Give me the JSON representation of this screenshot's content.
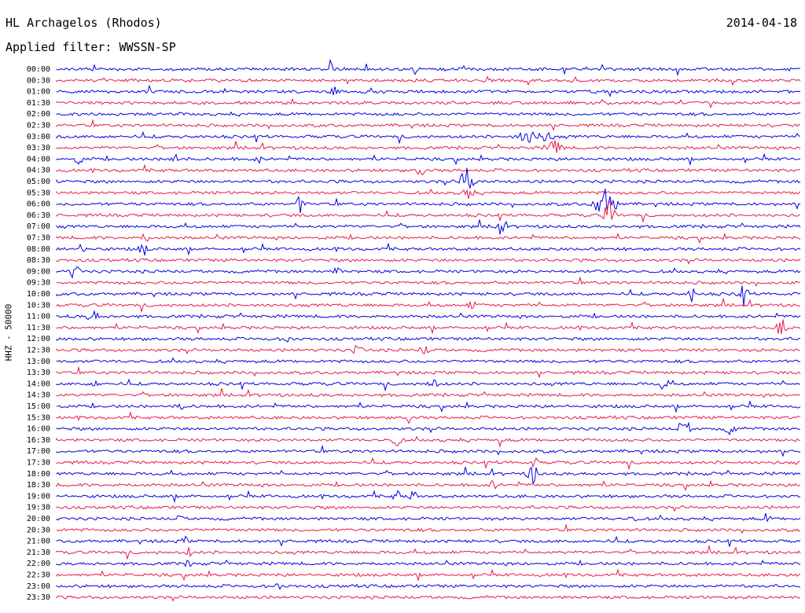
{
  "header": {
    "station": "HL Archagelos (Rhodos)",
    "filter": "Applied filter: WWSSN-SP",
    "date": "2014-04-18"
  },
  "axis": {
    "channel_label": "HHZ - 50000"
  },
  "colors": {
    "trace_a": "#0000e6",
    "trace_b": "#e6194b",
    "background": "#ffffff",
    "text": "#000000"
  },
  "chart_data": {
    "type": "line",
    "title": "",
    "xlabel": "",
    "ylabel": "HHZ - 50000",
    "grid": false,
    "series": [
      {
        "label": "00:00"
      },
      {
        "label": "00:30"
      },
      {
        "label": "01:00"
      },
      {
        "label": "01:30"
      },
      {
        "label": "02:00"
      },
      {
        "label": "02:30"
      },
      {
        "label": "03:00"
      },
      {
        "label": "03:30"
      },
      {
        "label": "04:00"
      },
      {
        "label": "04:30"
      },
      {
        "label": "05:00"
      },
      {
        "label": "05:30"
      },
      {
        "label": "06:00"
      },
      {
        "label": "06:30"
      },
      {
        "label": "07:00"
      },
      {
        "label": "07:30"
      },
      {
        "label": "08:00"
      },
      {
        "label": "08:30"
      },
      {
        "label": "09:00"
      },
      {
        "label": "09:30"
      },
      {
        "label": "10:00"
      },
      {
        "label": "10:30"
      },
      {
        "label": "11:00"
      },
      {
        "label": "11:30"
      },
      {
        "label": "12:00"
      },
      {
        "label": "12:30"
      },
      {
        "label": "13:00"
      },
      {
        "label": "13:30"
      },
      {
        "label": "14:00"
      },
      {
        "label": "14:30"
      },
      {
        "label": "15:00"
      },
      {
        "label": "15:30"
      },
      {
        "label": "16:00"
      },
      {
        "label": "16:30"
      },
      {
        "label": "17:00"
      },
      {
        "label": "17:30"
      },
      {
        "label": "18:00"
      },
      {
        "label": "18:30"
      },
      {
        "label": "19:00"
      },
      {
        "label": "19:30"
      },
      {
        "label": "20:00"
      },
      {
        "label": "20:30"
      },
      {
        "label": "21:00"
      },
      {
        "label": "21:30"
      },
      {
        "label": "22:00"
      },
      {
        "label": "22:30"
      },
      {
        "label": "23:00"
      },
      {
        "label": "23:30"
      }
    ]
  }
}
